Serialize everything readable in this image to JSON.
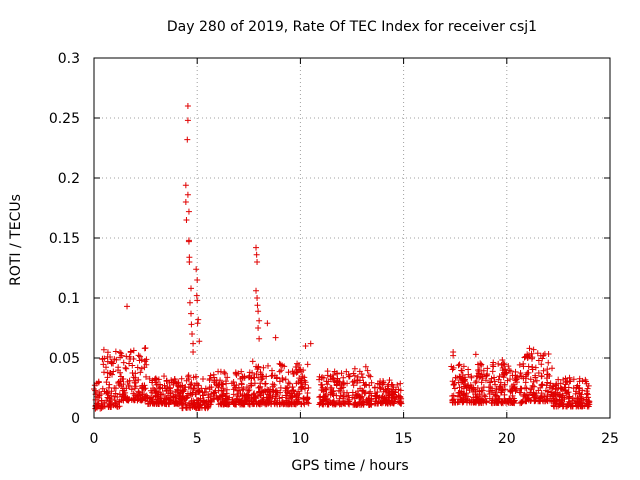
{
  "chart_data": {
    "type": "scatter",
    "title": "Day 280 of 2019, Rate Of TEC Index for receiver csj1",
    "xlabel": "GPS time / hours",
    "ylabel": "ROTI / TECUs",
    "xlim": [
      0,
      25
    ],
    "ylim": [
      0,
      0.3
    ],
    "grid": true,
    "marker": "+",
    "color": "#e00000",
    "x_ticks": [
      "0",
      "5",
      "10",
      "15",
      "20",
      "25"
    ],
    "y_ticks": [
      "0",
      "0.05",
      "0.1",
      "0.15",
      "0.2",
      "0.25",
      "0.3"
    ],
    "series": [
      {
        "name": "ROTI csj1",
        "segments": [
          {
            "from": 0.0,
            "to": 0.4,
            "base": 0.016,
            "spread": 0.012
          },
          {
            "from": 0.4,
            "to": 1.3,
            "base": 0.026,
            "spread": 0.024
          },
          {
            "from": 1.3,
            "to": 2.6,
            "base": 0.03,
            "spread": 0.022
          },
          {
            "from": 2.6,
            "to": 4.2,
            "base": 0.02,
            "spread": 0.012
          },
          {
            "from": 4.2,
            "to": 5.6,
            "base": 0.018,
            "spread": 0.014
          },
          {
            "from": 5.6,
            "to": 7.6,
            "base": 0.021,
            "spread": 0.014
          },
          {
            "from": 7.6,
            "to": 10.4,
            "base": 0.024,
            "spread": 0.018
          },
          {
            "from": 10.9,
            "to": 12.4,
            "base": 0.021,
            "spread": 0.014
          },
          {
            "from": 12.5,
            "to": 13.5,
            "base": 0.022,
            "spread": 0.016
          },
          {
            "from": 13.6,
            "to": 14.9,
            "base": 0.019,
            "spread": 0.01
          },
          {
            "from": 17.3,
            "to": 18.5,
            "base": 0.024,
            "spread": 0.016
          },
          {
            "from": 18.5,
            "to": 20.8,
            "base": 0.025,
            "spread": 0.018
          },
          {
            "from": 20.8,
            "to": 22.2,
            "base": 0.028,
            "spread": 0.02
          },
          {
            "from": 22.2,
            "to": 24.0,
            "base": 0.018,
            "spread": 0.012
          }
        ],
        "spikes": [
          {
            "x": 1.6,
            "y": 0.093
          },
          {
            "x": 4.45,
            "y": 0.194
          },
          {
            "x": 4.45,
            "y": 0.18
          },
          {
            "x": 4.48,
            "y": 0.165
          },
          {
            "x": 4.55,
            "y": 0.26
          },
          {
            "x": 4.55,
            "y": 0.248
          },
          {
            "x": 4.52,
            "y": 0.232
          },
          {
            "x": 4.55,
            "y": 0.186
          },
          {
            "x": 4.6,
            "y": 0.172
          },
          {
            "x": 4.6,
            "y": 0.148
          },
          {
            "x": 4.6,
            "y": 0.147
          },
          {
            "x": 4.62,
            "y": 0.134
          },
          {
            "x": 4.62,
            "y": 0.13
          },
          {
            "x": 4.7,
            "y": 0.108
          },
          {
            "x": 4.65,
            "y": 0.096
          },
          {
            "x": 4.7,
            "y": 0.087
          },
          {
            "x": 4.72,
            "y": 0.078
          },
          {
            "x": 4.75,
            "y": 0.07
          },
          {
            "x": 4.8,
            "y": 0.062
          },
          {
            "x": 4.8,
            "y": 0.055
          },
          {
            "x": 4.95,
            "y": 0.124
          },
          {
            "x": 5.0,
            "y": 0.115
          },
          {
            "x": 4.98,
            "y": 0.102
          },
          {
            "x": 5.0,
            "y": 0.098
          },
          {
            "x": 5.05,
            "y": 0.082
          },
          {
            "x": 5.02,
            "y": 0.079
          },
          {
            "x": 5.1,
            "y": 0.064
          },
          {
            "x": 7.85,
            "y": 0.142
          },
          {
            "x": 7.88,
            "y": 0.136
          },
          {
            "x": 7.9,
            "y": 0.13
          },
          {
            "x": 7.85,
            "y": 0.106
          },
          {
            "x": 7.9,
            "y": 0.1
          },
          {
            "x": 7.92,
            "y": 0.094
          },
          {
            "x": 7.95,
            "y": 0.089
          },
          {
            "x": 8.0,
            "y": 0.081
          },
          {
            "x": 7.95,
            "y": 0.075
          },
          {
            "x": 8.0,
            "y": 0.066
          },
          {
            "x": 8.4,
            "y": 0.079
          },
          {
            "x": 8.8,
            "y": 0.067
          },
          {
            "x": 10.25,
            "y": 0.06
          },
          {
            "x": 10.5,
            "y": 0.062
          },
          {
            "x": 17.4,
            "y": 0.052
          },
          {
            "x": 17.4,
            "y": 0.055
          },
          {
            "x": 18.5,
            "y": 0.053
          },
          {
            "x": 21.1,
            "y": 0.058
          },
          {
            "x": 21.3,
            "y": 0.057
          },
          {
            "x": 21.5,
            "y": 0.054
          }
        ]
      }
    ]
  }
}
